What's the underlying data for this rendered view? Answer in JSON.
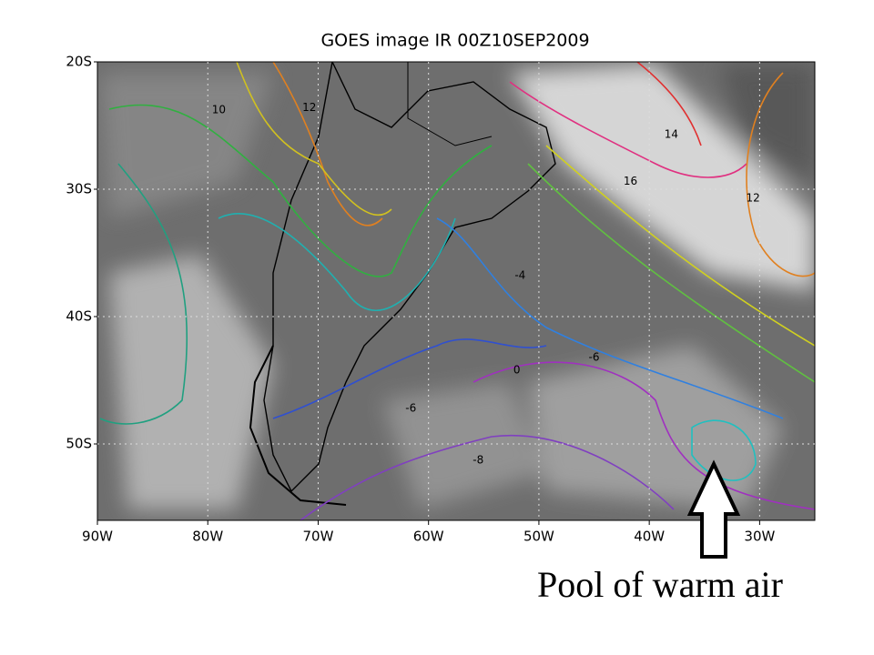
{
  "map": {
    "title": "GOES image IR 00Z10SEP2009",
    "xlim": [
      -90,
      -25
    ],
    "ylim": [
      -20,
      -56
    ],
    "xticks": [
      {
        "value": -90,
        "label": "90W"
      },
      {
        "value": -80,
        "label": "80W"
      },
      {
        "value": -70,
        "label": "70W"
      },
      {
        "value": -60,
        "label": "60W"
      },
      {
        "value": -50,
        "label": "50W"
      },
      {
        "value": -40,
        "label": "40W"
      },
      {
        "value": -30,
        "label": "30W"
      }
    ],
    "yticks": [
      {
        "value": -20,
        "label": "20S"
      },
      {
        "value": -30,
        "label": "30S"
      },
      {
        "value": -40,
        "label": "40S"
      },
      {
        "value": -50,
        "label": "50S"
      }
    ],
    "grid": true,
    "contour_labels": [
      {
        "lon": -79,
        "lat": -23.8,
        "value": 10,
        "color": "#e0a020"
      },
      {
        "lon": -70.8,
        "lat": -23.6,
        "value": 12,
        "color": "#e08020"
      },
      {
        "lon": -38,
        "lat": -25.7,
        "value": 14,
        "color": "#e03030"
      },
      {
        "lon": -41.7,
        "lat": -29.4,
        "value": 16,
        "color": "#e03080"
      },
      {
        "lon": -30.6,
        "lat": -30.7,
        "value": 12,
        "color": "#e08020"
      },
      {
        "lon": -51.7,
        "lat": -36.8,
        "value": -4,
        "color": "#4060d0"
      },
      {
        "lon": -52,
        "lat": -44.2,
        "value": 0,
        "color": "#8040c0"
      },
      {
        "lon": -45,
        "lat": -43.2,
        "value": -6,
        "color": "#9030c0"
      },
      {
        "lon": -61.6,
        "lat": -47.2,
        "value": -6,
        "color": "#9030c0"
      },
      {
        "lon": -55.5,
        "lat": -51.3,
        "value": -8,
        "color": "#9030c0"
      }
    ],
    "annotation": "Pool of warm air"
  }
}
